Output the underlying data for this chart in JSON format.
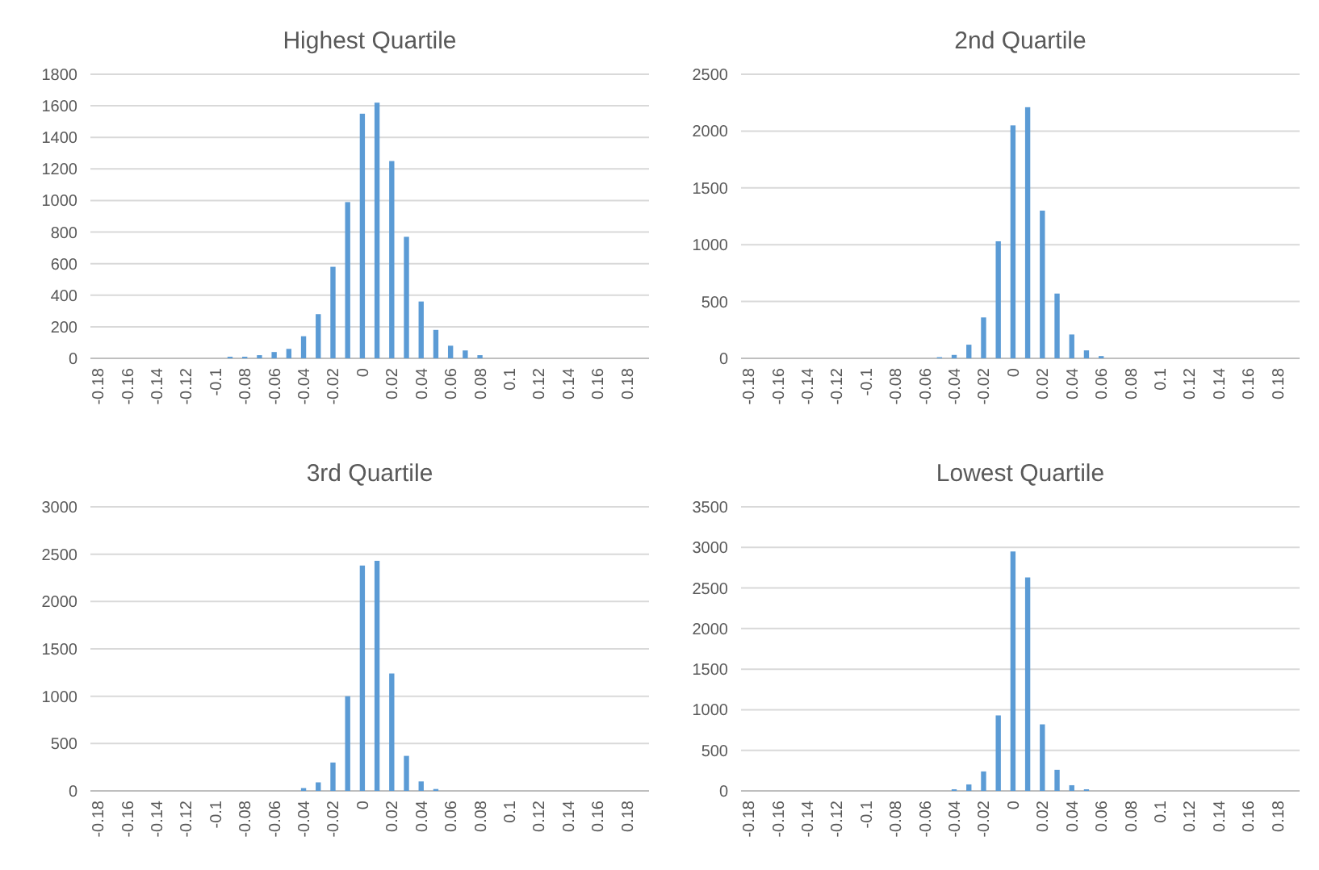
{
  "chart_data": [
    {
      "type": "bar",
      "title": "Highest Quartile",
      "categories": [
        "-0.18",
        null,
        "-0.16",
        null,
        "-0.14",
        null,
        "-0.12",
        null,
        "-0.1",
        null,
        "-0.08",
        null,
        "-0.06",
        null,
        "-0.04",
        null,
        "-0.02",
        null,
        "0",
        null,
        "0.02",
        null,
        "0.04",
        null,
        "0.06",
        null,
        "0.08",
        null,
        "0.1",
        null,
        "0.12",
        null,
        "0.14",
        null,
        "0.16",
        null,
        "0.18",
        null
      ],
      "values": [
        0,
        0,
        0,
        0,
        0,
        0,
        0,
        0,
        0,
        10,
        10,
        20,
        40,
        60,
        140,
        280,
        580,
        990,
        1550,
        1620,
        1250,
        770,
        360,
        180,
        80,
        50,
        20,
        0,
        0,
        0,
        0,
        0,
        0,
        0,
        0,
        0,
        0,
        0
      ],
      "color": "#5b9bd5",
      "ylim": [
        0,
        1800
      ],
      "yticks": [
        0,
        200,
        400,
        600,
        800,
        1000,
        1200,
        1400,
        1600,
        1800
      ],
      "grid": "y"
    },
    {
      "type": "bar",
      "title": "2nd Quartile",
      "categories": [
        "-0.18",
        null,
        "-0.16",
        null,
        "-0.14",
        null,
        "-0.12",
        null,
        "-0.1",
        null,
        "-0.08",
        null,
        "-0.06",
        null,
        "-0.04",
        null,
        "-0.02",
        null,
        "0",
        null,
        "0.02",
        null,
        "0.04",
        null,
        "0.06",
        null,
        "0.08",
        null,
        "0.1",
        null,
        "0.12",
        null,
        "0.14",
        null,
        "0.16",
        null,
        "0.18",
        null
      ],
      "values": [
        0,
        0,
        0,
        0,
        0,
        0,
        0,
        0,
        0,
        0,
        0,
        0,
        0,
        10,
        30,
        120,
        360,
        1030,
        2050,
        2210,
        1300,
        570,
        210,
        70,
        20,
        0,
        0,
        0,
        0,
        0,
        0,
        0,
        0,
        0,
        0,
        0,
        0,
        0
      ],
      "color": "#5b9bd5",
      "ylim": [
        0,
        2500
      ],
      "yticks": [
        0,
        500,
        1000,
        1500,
        2000,
        2500
      ],
      "grid": "y"
    },
    {
      "type": "bar",
      "title": "3rd Quartile",
      "categories": [
        "-0.18",
        null,
        "-0.16",
        null,
        "-0.14",
        null,
        "-0.12",
        null,
        "-0.1",
        null,
        "-0.08",
        null,
        "-0.06",
        null,
        "-0.04",
        null,
        "-0.02",
        null,
        "0",
        null,
        "0.02",
        null,
        "0.04",
        null,
        "0.06",
        null,
        "0.08",
        null,
        "0.1",
        null,
        "0.12",
        null,
        "0.14",
        null,
        "0.16",
        null,
        "0.18",
        null
      ],
      "values": [
        0,
        0,
        0,
        0,
        0,
        0,
        0,
        0,
        0,
        0,
        0,
        0,
        0,
        0,
        30,
        90,
        300,
        1000,
        2380,
        2430,
        1240,
        370,
        100,
        20,
        0,
        0,
        0,
        0,
        0,
        0,
        0,
        0,
        0,
        0,
        0,
        0,
        0,
        0
      ],
      "color": "#5b9bd5",
      "ylim": [
        0,
        3000
      ],
      "yticks": [
        0,
        500,
        1000,
        1500,
        2000,
        2500,
        3000
      ],
      "grid": "y"
    },
    {
      "type": "bar",
      "title": "Lowest Quartile",
      "categories": [
        "-0.18",
        null,
        "-0.16",
        null,
        "-0.14",
        null,
        "-0.12",
        null,
        "-0.1",
        null,
        "-0.08",
        null,
        "-0.06",
        null,
        "-0.04",
        null,
        "-0.02",
        null,
        "0",
        null,
        "0.02",
        null,
        "0.04",
        null,
        "0.06",
        null,
        "0.08",
        null,
        "0.1",
        null,
        "0.12",
        null,
        "0.14",
        null,
        "0.16",
        null,
        "0.18",
        null
      ],
      "values": [
        0,
        0,
        0,
        0,
        0,
        0,
        0,
        0,
        0,
        0,
        0,
        0,
        0,
        0,
        20,
        80,
        240,
        930,
        2950,
        2630,
        820,
        260,
        70,
        20,
        0,
        0,
        0,
        0,
        0,
        0,
        0,
        0,
        0,
        0,
        0,
        0,
        0,
        0
      ],
      "color": "#5b9bd5",
      "ylim": [
        0,
        3500
      ],
      "yticks": [
        0,
        500,
        1000,
        1500,
        2000,
        2500,
        3000,
        3500
      ],
      "grid": "y"
    }
  ]
}
